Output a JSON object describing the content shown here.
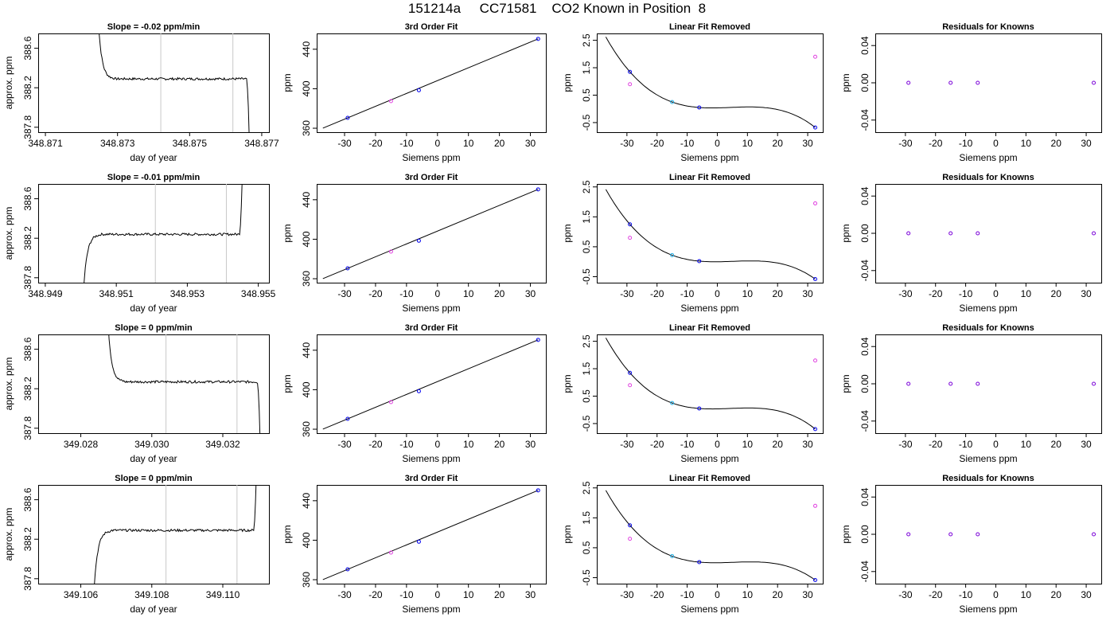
{
  "page_title": "151214a     CC71581    CO2 Known in Position  8",
  "chart_data": [
    {
      "type": "line",
      "panel": "row1-col1",
      "title": "Slope =  -0.02  ppm/min",
      "xlabel": "day of year",
      "ylabel": "approx. ppm",
      "xlim": [
        348.8708,
        348.8772
      ],
      "ylim": [
        387.75,
        388.75
      ],
      "xticks": [
        "348.871",
        "348.873",
        "348.875",
        "348.877"
      ],
      "xtick_values": [
        348.871,
        348.873,
        348.875,
        348.877
      ],
      "yticks": [
        "387.8",
        "388.2",
        "388.6"
      ],
      "ytick_values": [
        387.8,
        388.2,
        388.6
      ],
      "vlines": [
        348.8742,
        348.8762
      ],
      "trace": {
        "start": 348.8724,
        "end": 348.8767,
        "plateau": 388.29,
        "noise": 0.012,
        "pre": "high",
        "post": "low"
      }
    },
    {
      "type": "line",
      "panel": "row1-col2",
      "title": "3rd Order Fit",
      "xlabel": "Siemens ppm",
      "ylabel": "ppm",
      "xlim": [
        -39,
        35
      ],
      "ylim": [
        356,
        456
      ],
      "xticks": [
        "-30",
        "-20",
        "-10",
        "0",
        "10",
        "20",
        "30"
      ],
      "xtick_values": [
        -30,
        -20,
        -10,
        0,
        10,
        20,
        30
      ],
      "yticks": [
        "360",
        "400",
        "440"
      ],
      "ytick_values": [
        360,
        400,
        440
      ],
      "points": [
        {
          "x": -29,
          "y": 370.5
        },
        {
          "x": -15,
          "y": 387.5
        },
        {
          "x": -6,
          "y": 398.5
        },
        {
          "x": 32.5,
          "y": 450.5
        }
      ],
      "fit_range": [
        -37,
        32.5
      ]
    },
    {
      "type": "scatter",
      "panel": "row1-col3",
      "title": "Linear Fit Removed",
      "xlabel": "Siemens ppm",
      "ylabel": "ppm",
      "xlim": [
        -40,
        35
      ],
      "ylim": [
        -0.85,
        2.75
      ],
      "xticks": [
        "-30",
        "-20",
        "-10",
        "0",
        "10",
        "20",
        "30"
      ],
      "xtick_values": [
        -30,
        -20,
        -10,
        0,
        10,
        20,
        30
      ],
      "yticks": [
        "-0.5",
        "0.5",
        "1.5",
        "2.5"
      ],
      "ytick_values": [
        -0.5,
        0.5,
        1.5,
        2.5
      ],
      "curve_range": [
        -37,
        32.5
      ],
      "points": [
        {
          "x": -29,
          "y": 1.35,
          "color": "blue"
        },
        {
          "x": -29,
          "y": 0.9,
          "color": "magenta"
        },
        {
          "x": -15,
          "y": 0.25,
          "color": "cyan"
        },
        {
          "x": -6,
          "y": 0.05,
          "color": "blue"
        },
        {
          "x": 32.5,
          "y": -0.68,
          "color": "blue"
        },
        {
          "x": 32.5,
          "y": 1.9,
          "color": "magenta"
        }
      ]
    },
    {
      "type": "scatter",
      "panel": "row1-col4",
      "title": "Residuals for Knowns",
      "xlabel": "Siemens ppm",
      "ylabel": "ppm",
      "xlim": [
        -40,
        35
      ],
      "ylim": [
        -0.053,
        0.053
      ],
      "xticks": [
        "-30",
        "-20",
        "-10",
        "0",
        "10",
        "20",
        "30"
      ],
      "xtick_values": [
        -30,
        -20,
        -10,
        0,
        10,
        20,
        30
      ],
      "yticks": [
        "-0.04",
        "0.00",
        "0.04"
      ],
      "ytick_values": [
        -0.04,
        0,
        0.04
      ],
      "points": [
        {
          "x": -29,
          "y": 0
        },
        {
          "x": -15,
          "y": 0
        },
        {
          "x": -6,
          "y": 0
        },
        {
          "x": 32.5,
          "y": 0
        }
      ]
    },
    {
      "type": "line",
      "panel": "row2-col1",
      "title": "Slope =  -0.01  ppm/min",
      "xlabel": "day of year",
      "ylabel": "approx. ppm",
      "xlim": [
        348.9488,
        348.9553
      ],
      "ylim": [
        387.75,
        388.75
      ],
      "xticks": [
        "348.949",
        "348.951",
        "348.953",
        "348.955"
      ],
      "xtick_values": [
        348.949,
        348.951,
        348.953,
        348.955
      ],
      "yticks": [
        "387.8",
        "388.2",
        "388.6"
      ],
      "ytick_values": [
        387.8,
        388.2,
        388.6
      ],
      "vlines": [
        348.9521,
        348.9541
      ],
      "trace": {
        "start": 348.95,
        "end": 348.9546,
        "plateau": 388.24,
        "noise": 0.012,
        "pre": "low",
        "post": "high"
      }
    },
    {
      "type": "line",
      "panel": "row2-col2",
      "title": "3rd Order Fit",
      "xlabel": "Siemens ppm",
      "ylabel": "ppm",
      "xlim": [
        -39,
        35
      ],
      "ylim": [
        356,
        456
      ],
      "xticks": [
        "-30",
        "-20",
        "-10",
        "0",
        "10",
        "20",
        "30"
      ],
      "xtick_values": [
        -30,
        -20,
        -10,
        0,
        10,
        20,
        30
      ],
      "yticks": [
        "360",
        "400",
        "440"
      ],
      "ytick_values": [
        360,
        400,
        440
      ],
      "points": [
        {
          "x": -29,
          "y": 370.5
        },
        {
          "x": -15,
          "y": 387.5
        },
        {
          "x": -6,
          "y": 398.5
        },
        {
          "x": 32.5,
          "y": 450.5
        }
      ],
      "fit_range": [
        -37,
        32.5
      ]
    },
    {
      "type": "scatter",
      "panel": "row2-col3",
      "title": "Linear Fit Removed",
      "xlabel": "Siemens ppm",
      "ylabel": "ppm",
      "xlim": [
        -40,
        35
      ],
      "ylim": [
        -0.7,
        2.6
      ],
      "xticks": [
        "-30",
        "-20",
        "-10",
        "0",
        "10",
        "20",
        "30"
      ],
      "xtick_values": [
        -30,
        -20,
        -10,
        0,
        10,
        20,
        30
      ],
      "yticks": [
        "-0.5",
        "0.5",
        "1.5",
        "2.5"
      ],
      "ytick_values": [
        -0.5,
        0.5,
        1.5,
        2.5
      ],
      "curve_range": [
        -37,
        32.5
      ],
      "points": [
        {
          "x": -29,
          "y": 1.25,
          "color": "blue"
        },
        {
          "x": -29,
          "y": 0.8,
          "color": "magenta"
        },
        {
          "x": -15,
          "y": 0.22,
          "color": "cyan"
        },
        {
          "x": -6,
          "y": 0.02,
          "color": "blue"
        },
        {
          "x": 32.5,
          "y": -0.58,
          "color": "blue"
        },
        {
          "x": 32.5,
          "y": 1.95,
          "color": "magenta"
        }
      ]
    },
    {
      "type": "scatter",
      "panel": "row2-col4",
      "title": "Residuals for Knowns",
      "xlabel": "Siemens ppm",
      "ylabel": "ppm",
      "xlim": [
        -40,
        35
      ],
      "ylim": [
        -0.053,
        0.053
      ],
      "xticks": [
        "-30",
        "-20",
        "-10",
        "0",
        "10",
        "20",
        "30"
      ],
      "xtick_values": [
        -30,
        -20,
        -10,
        0,
        10,
        20,
        30
      ],
      "yticks": [
        "-0.04",
        "0.00",
        "0.04"
      ],
      "ytick_values": [
        -0.04,
        0,
        0.04
      ],
      "points": [
        {
          "x": -29,
          "y": 0
        },
        {
          "x": -15,
          "y": 0
        },
        {
          "x": -6,
          "y": 0
        },
        {
          "x": 32.5,
          "y": 0
        }
      ]
    },
    {
      "type": "line",
      "panel": "row3-col1",
      "title": "Slope =  0  ppm/min",
      "xlabel": "day of year",
      "ylabel": "approx. ppm",
      "xlim": [
        349.0268,
        349.0333
      ],
      "ylim": [
        387.75,
        388.75
      ],
      "xticks": [
        "349.028",
        "349.030",
        "349.032"
      ],
      "xtick_values": [
        349.028,
        349.03,
        349.032
      ],
      "yticks": [
        "387.8",
        "388.2",
        "388.6"
      ],
      "ytick_values": [
        387.8,
        388.2,
        388.6
      ],
      "vlines": [
        349.0304,
        349.0324
      ],
      "trace": {
        "start": 349.0287,
        "end": 349.0331,
        "plateau": 388.27,
        "noise": 0.012,
        "pre": "high",
        "post": "low"
      }
    },
    {
      "type": "line",
      "panel": "row3-col2",
      "title": "3rd Order Fit",
      "xlabel": "Siemens ppm",
      "ylabel": "ppm",
      "xlim": [
        -39,
        35
      ],
      "ylim": [
        356,
        456
      ],
      "xticks": [
        "-30",
        "-20",
        "-10",
        "0",
        "10",
        "20",
        "30"
      ],
      "xtick_values": [
        -30,
        -20,
        -10,
        0,
        10,
        20,
        30
      ],
      "yticks": [
        "360",
        "400",
        "440"
      ],
      "ytick_values": [
        360,
        400,
        440
      ],
      "points": [
        {
          "x": -29,
          "y": 370.5
        },
        {
          "x": -15,
          "y": 387.5
        },
        {
          "x": -6,
          "y": 398.5
        },
        {
          "x": 32.5,
          "y": 450.5
        }
      ],
      "fit_range": [
        -37,
        32.5
      ]
    },
    {
      "type": "scatter",
      "panel": "row3-col3",
      "title": "Linear Fit Removed",
      "xlabel": "Siemens ppm",
      "ylabel": "ppm",
      "xlim": [
        -40,
        35
      ],
      "ylim": [
        -0.85,
        2.75
      ],
      "xticks": [
        "-30",
        "-20",
        "-10",
        "0",
        "10",
        "20",
        "30"
      ],
      "xtick_values": [
        -30,
        -20,
        -10,
        0,
        10,
        20,
        30
      ],
      "yticks": [
        "-0.5",
        "0.5",
        "1.5",
        "2.5"
      ],
      "ytick_values": [
        -0.5,
        0.5,
        1.5,
        2.5
      ],
      "curve_range": [
        -37,
        32.5
      ],
      "points": [
        {
          "x": -29,
          "y": 1.35,
          "color": "blue"
        },
        {
          "x": -29,
          "y": 0.9,
          "color": "magenta"
        },
        {
          "x": -15,
          "y": 0.25,
          "color": "cyan"
        },
        {
          "x": -6,
          "y": 0.05,
          "color": "blue"
        },
        {
          "x": 32.5,
          "y": -0.7,
          "color": "blue"
        },
        {
          "x": 32.5,
          "y": 1.8,
          "color": "magenta"
        }
      ]
    },
    {
      "type": "scatter",
      "panel": "row3-col4",
      "title": "Residuals for Knowns",
      "xlabel": "Siemens ppm",
      "ylabel": "ppm",
      "xlim": [
        -40,
        35
      ],
      "ylim": [
        -0.053,
        0.053
      ],
      "xticks": [
        "-30",
        "-20",
        "-10",
        "0",
        "10",
        "20",
        "30"
      ],
      "xtick_values": [
        -30,
        -20,
        -10,
        0,
        10,
        20,
        30
      ],
      "yticks": [
        "-0.04",
        "0.00",
        "0.04"
      ],
      "ytick_values": [
        -0.04,
        0,
        0.04
      ],
      "points": [
        {
          "x": -29,
          "y": 0
        },
        {
          "x": -15,
          "y": 0
        },
        {
          "x": -6,
          "y": 0
        },
        {
          "x": 32.5,
          "y": 0
        }
      ]
    },
    {
      "type": "line",
      "panel": "row4-col1",
      "title": "Slope =  0  ppm/min",
      "xlabel": "day of year",
      "ylabel": "approx. ppm",
      "xlim": [
        349.1048,
        349.1113
      ],
      "ylim": [
        387.75,
        388.75
      ],
      "xticks": [
        "349.106",
        "349.108",
        "349.110"
      ],
      "xtick_values": [
        349.106,
        349.108,
        349.11
      ],
      "yticks": [
        "387.8",
        "388.2",
        "388.6"
      ],
      "ytick_values": [
        387.8,
        388.2,
        388.6
      ],
      "vlines": [
        349.1084,
        349.1104
      ],
      "trace": {
        "start": 349.1063,
        "end": 349.111,
        "plateau": 388.29,
        "noise": 0.012,
        "pre": "low",
        "post": "high"
      }
    },
    {
      "type": "line",
      "panel": "row4-col2",
      "title": "3rd Order Fit",
      "xlabel": "Siemens ppm",
      "ylabel": "ppm",
      "xlim": [
        -39,
        35
      ],
      "ylim": [
        356,
        456
      ],
      "xticks": [
        "-30",
        "-20",
        "-10",
        "0",
        "10",
        "20",
        "30"
      ],
      "xtick_values": [
        -30,
        -20,
        -10,
        0,
        10,
        20,
        30
      ],
      "yticks": [
        "360",
        "400",
        "440"
      ],
      "ytick_values": [
        360,
        400,
        440
      ],
      "points": [
        {
          "x": -29,
          "y": 370.5
        },
        {
          "x": -15,
          "y": 387.5
        },
        {
          "x": -6,
          "y": 398.5
        },
        {
          "x": 32.5,
          "y": 450.5
        }
      ],
      "fit_range": [
        -37,
        32.5
      ]
    },
    {
      "type": "scatter",
      "panel": "row4-col3",
      "title": "Linear Fit Removed",
      "xlabel": "Siemens ppm",
      "ylabel": "ppm",
      "xlim": [
        -40,
        35
      ],
      "ylim": [
        -0.7,
        2.6
      ],
      "xticks": [
        "-30",
        "-20",
        "-10",
        "0",
        "10",
        "20",
        "30"
      ],
      "xtick_values": [
        -30,
        -20,
        -10,
        0,
        10,
        20,
        30
      ],
      "yticks": [
        "-0.5",
        "0.5",
        "1.5",
        "2.5"
      ],
      "ytick_values": [
        -0.5,
        0.5,
        1.5,
        2.5
      ],
      "curve_range": [
        -37,
        32.5
      ],
      "points": [
        {
          "x": -29,
          "y": 1.25,
          "color": "blue"
        },
        {
          "x": -29,
          "y": 0.8,
          "color": "magenta"
        },
        {
          "x": -15,
          "y": 0.22,
          "color": "cyan"
        },
        {
          "x": -6,
          "y": 0.02,
          "color": "blue"
        },
        {
          "x": 32.5,
          "y": -0.58,
          "color": "blue"
        },
        {
          "x": 32.5,
          "y": 1.9,
          "color": "magenta"
        }
      ]
    },
    {
      "type": "scatter",
      "panel": "row4-col4",
      "title": "Residuals for Knowns",
      "xlabel": "Siemens ppm",
      "ylabel": "ppm",
      "xlim": [
        -40,
        35
      ],
      "ylim": [
        -0.053,
        0.053
      ],
      "xticks": [
        "-30",
        "-20",
        "-10",
        "0",
        "10",
        "20",
        "30"
      ],
      "xtick_values": [
        -30,
        -20,
        -10,
        0,
        10,
        20,
        30
      ],
      "yticks": [
        "-0.04",
        "0.00",
        "0.04"
      ],
      "ytick_values": [
        -0.04,
        0,
        0.04
      ],
      "points": [
        {
          "x": -29,
          "y": 0
        },
        {
          "x": -15,
          "y": 0
        },
        {
          "x": -6,
          "y": 0
        },
        {
          "x": 32.5,
          "y": 0
        }
      ]
    }
  ],
  "colors": {
    "blue": "#0000ee",
    "magenta": "#e040e0",
    "cyan": "#20b0e8",
    "residual": "#7a00d8",
    "trace": "#000000",
    "vline": "#c8c8c8",
    "axis": "#000000"
  }
}
